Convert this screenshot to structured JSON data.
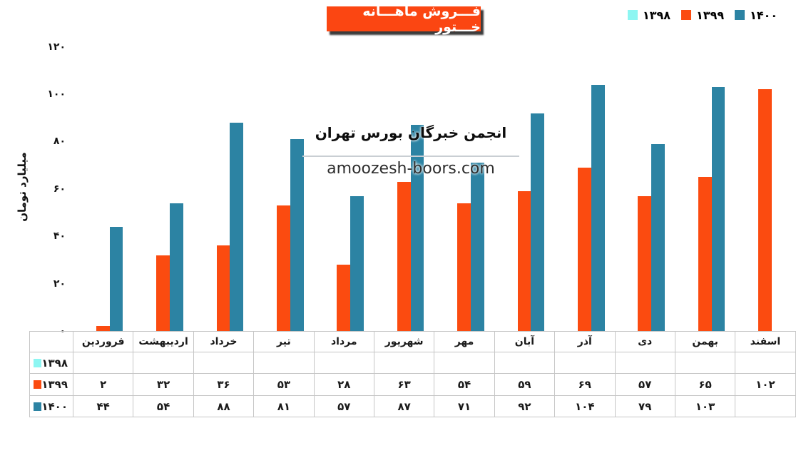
{
  "title": {
    "text": "فـــروش ماهـــانه خـــتور",
    "bg_color": "#fb4612",
    "text_color": "#ffffff"
  },
  "watermark": {
    "line1": "انجمن خبرگان بورس تهران",
    "line2": "amoozesh-boors.com"
  },
  "legend": {
    "position": "top-right",
    "items": [
      {
        "label": "۱۳۹۸",
        "color": "#8df6f2"
      },
      {
        "label": "۱۳۹۹",
        "color": "#fb4b10"
      },
      {
        "label": "۱۴۰۰",
        "color": "#2c83a3"
      }
    ]
  },
  "axes": {
    "y_title": "میلیارد تومان",
    "y_ticks": [
      {
        "label": "۰",
        "value": 0
      },
      {
        "label": "۲۰",
        "value": 20
      },
      {
        "label": "۴۰",
        "value": 40
      },
      {
        "label": "۶۰",
        "value": 60
      },
      {
        "label": "۸۰",
        "value": 80
      },
      {
        "label": "۱۰۰",
        "value": 100
      },
      {
        "label": "۱۲۰",
        "value": 120
      }
    ]
  },
  "chart_data": {
    "type": "bar",
    "title": "فـــروش ماهـــانه خـــتور",
    "ylabel": "میلیارد تومان",
    "ylim": [
      0,
      120
    ],
    "grid": false,
    "legend_position": "top-right",
    "categories": [
      "فروردین",
      "اردیبهشت",
      "خرداد",
      "تیر",
      "مرداد",
      "شهریور",
      "مهر",
      "آبان",
      "آذر",
      "دی",
      "بهمن",
      "اسفند"
    ],
    "series": [
      {
        "name": "۱۳۹۸",
        "name_latin": "1398",
        "color": "#8df6f2",
        "values": [
          null,
          null,
          null,
          null,
          null,
          null,
          null,
          null,
          null,
          null,
          null,
          null
        ],
        "display_values": [
          "",
          "",
          "",
          "",
          "",
          "",
          "",
          "",
          "",
          "",
          "",
          ""
        ]
      },
      {
        "name": "۱۳۹۹",
        "name_latin": "1399",
        "color": "#fb4b10",
        "values": [
          2,
          32,
          36,
          53,
          28,
          63,
          54,
          59,
          69,
          57,
          65,
          102
        ],
        "display_values": [
          "۲",
          "۳۲",
          "۳۶",
          "۵۳",
          "۲۸",
          "۶۳",
          "۵۴",
          "۵۹",
          "۶۹",
          "۵۷",
          "۶۵",
          "۱۰۲"
        ]
      },
      {
        "name": "۱۴۰۰",
        "name_latin": "1400",
        "color": "#2c83a3",
        "values": [
          44,
          54,
          88,
          81,
          57,
          87,
          71,
          92,
          104,
          79,
          103,
          null
        ],
        "display_values": [
          "۴۴",
          "۵۴",
          "۸۸",
          "۸۱",
          "۵۷",
          "۸۷",
          "۷۱",
          "۹۲",
          "۱۰۴",
          "۷۹",
          "۱۰۳",
          ""
        ]
      }
    ]
  }
}
